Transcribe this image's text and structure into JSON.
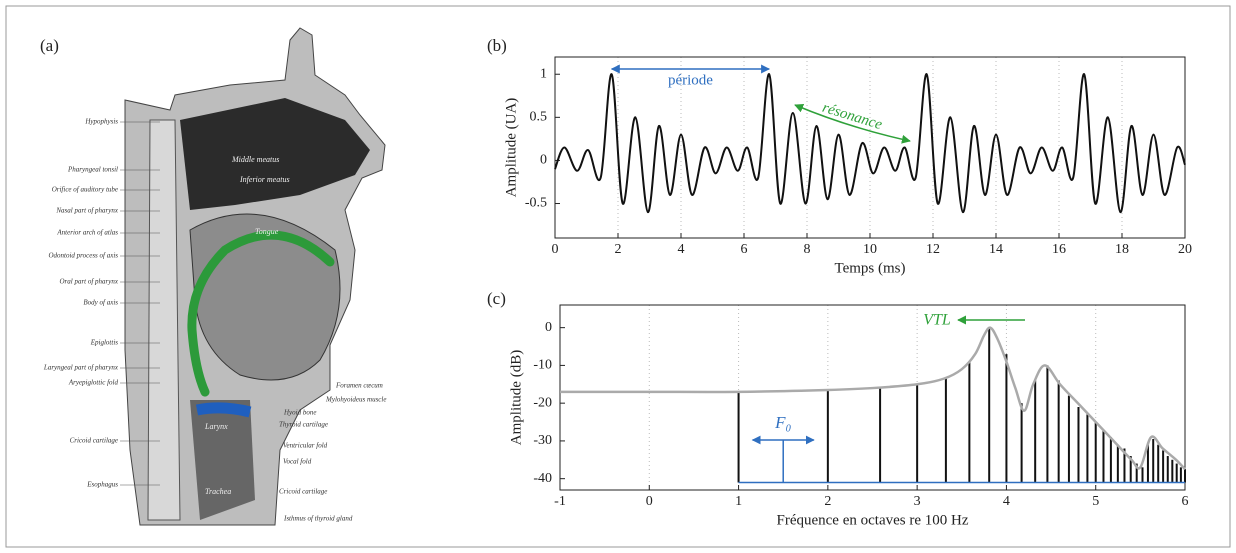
{
  "panel_a": {
    "label": "(a)",
    "labels_left": [
      "Hypophysis",
      "Pharyngeal tonsil",
      "Orifice of auditory tube",
      "Nasal part of pharynx",
      "Anterior arch of atlas",
      "Odontoid process of axis",
      "Oral part of pharynx",
      "Body of axis",
      "Epiglottis",
      "Laryngeal part of pharynx",
      "Aryepiglottic fold",
      "Cricoid cartilage",
      "Esophagus"
    ],
    "labels_right": [
      "Foramen cæcum",
      "Mylohyoideus muscle",
      "Hyoid bone",
      "Thyroid cartilage",
      "Ventricular fold",
      "Vocal fold",
      "Cricoid cartilage",
      "Isthmus of thyroid gland"
    ],
    "labels_inside": [
      "Tongue",
      "Larynx",
      "Middle meatus",
      "Inferior meatus",
      "Trachea"
    ]
  },
  "chart_data": [
    {
      "type": "line",
      "panel": "(b)",
      "xlabel": "Temps (ms)",
      "ylabel": "Amplitude (UA)",
      "xlim": [
        0,
        20
      ],
      "ylim": [
        -0.9,
        1.2
      ],
      "xticks": [
        0,
        2,
        4,
        6,
        8,
        10,
        12,
        14,
        16,
        18,
        20
      ],
      "yticks": [
        -0.5,
        0,
        0.5,
        1
      ],
      "grid": true,
      "color": "#111111",
      "x": [
        0,
        0.3,
        0.7,
        1.05,
        1.45,
        1.8,
        2.15,
        2.55,
        2.95,
        3.3,
        3.65,
        4.0,
        4.35,
        4.75,
        5.1,
        5.45,
        5.8,
        6.1,
        6.45,
        6.8,
        7.15,
        7.55,
        7.95,
        8.3,
        8.65,
        9.0,
        9.35,
        9.75,
        10.1,
        10.45,
        10.8,
        11.1,
        11.45,
        11.8,
        12.15,
        12.55,
        12.95,
        13.3,
        13.65,
        14.0,
        14.35,
        14.75,
        15.1,
        15.45,
        15.8,
        16.1,
        16.45,
        16.8,
        17.15,
        17.55,
        17.95,
        18.3,
        18.65,
        19.0,
        19.35,
        19.75,
        20.0
      ],
      "values": [
        -0.1,
        0.15,
        -0.12,
        0.12,
        -0.2,
        1.0,
        -0.5,
        0.5,
        -0.6,
        0.4,
        -0.4,
        0.3,
        -0.4,
        0.15,
        -0.15,
        0.15,
        -0.12,
        0.15,
        -0.2,
        1.0,
        -0.5,
        0.55,
        -0.5,
        0.4,
        -0.45,
        0.3,
        -0.4,
        0.2,
        -0.15,
        0.15,
        -0.12,
        0.15,
        -0.2,
        1.0,
        -0.5,
        0.5,
        -0.6,
        0.4,
        -0.4,
        0.3,
        -0.4,
        0.15,
        -0.15,
        0.15,
        -0.12,
        0.15,
        -0.2,
        1.0,
        -0.5,
        0.5,
        -0.6,
        0.4,
        -0.4,
        0.3,
        -0.4,
        0.15,
        -0.05
      ],
      "annotations": [
        {
          "text": "période",
          "color": "#2f6fc0"
        },
        {
          "text": "résonance",
          "color": "#2fa13a"
        }
      ]
    },
    {
      "type": "stem",
      "panel": "(c)",
      "xlabel": "Fréquence en octaves re 100 Hz",
      "ylabel": "Amplitude (dB)",
      "xlim": [
        -1,
        6
      ],
      "ylim": [
        -43,
        6
      ],
      "xticks": [
        -1,
        0,
        1,
        2,
        3,
        4,
        5,
        6
      ],
      "yticks": [
        -40,
        -30,
        -20,
        -10,
        0
      ],
      "grid": true,
      "color": "#111111",
      "baseline": {
        "value": -41,
        "color": "#2f6fc0"
      },
      "x": [
        1,
        2,
        2.585,
        3,
        3.322,
        3.585,
        3.807,
        4,
        4.17,
        4.322,
        4.459,
        4.585,
        4.7,
        4.807,
        4.907,
        5,
        5.087,
        5.17,
        5.248,
        5.322,
        5.392,
        5.459,
        5.524,
        5.585,
        5.644,
        5.7,
        5.755,
        5.807,
        5.858,
        5.907,
        5.954,
        6
      ],
      "values": [
        -17,
        -16.5,
        -16,
        -15,
        -13.5,
        -9,
        0,
        -7,
        -20,
        -14,
        -10,
        -14,
        -18,
        -21,
        -23,
        -25,
        -27,
        -29,
        -31,
        -32,
        -34,
        -36,
        -37,
        -31,
        -29.5,
        -31,
        -32.5,
        -34,
        -35,
        -36,
        -37,
        -37.5
      ],
      "envelope": {
        "color": "#aaaaaa",
        "x": [
          -1,
          0,
          1,
          2,
          2.5,
          3,
          3.3,
          3.5,
          3.65,
          3.75,
          3.82,
          3.9,
          4.0,
          4.1,
          4.2,
          4.3,
          4.43,
          4.6,
          4.8,
          5.0,
          5.2,
          5.4,
          5.5,
          5.62,
          5.75,
          5.9,
          6
        ],
        "values": [
          -17,
          -17,
          -17,
          -16.5,
          -16,
          -15,
          -13.5,
          -11,
          -7,
          -2,
          0,
          -3,
          -9,
          -16,
          -22,
          -15,
          -10,
          -15,
          -20,
          -25,
          -30,
          -35,
          -37,
          -29,
          -32,
          -35,
          -37.5
        ]
      },
      "annotations": [
        {
          "text": "F₀",
          "color": "#2f6fc0"
        },
        {
          "text": "VTL",
          "color": "#2fa13a"
        }
      ]
    }
  ]
}
